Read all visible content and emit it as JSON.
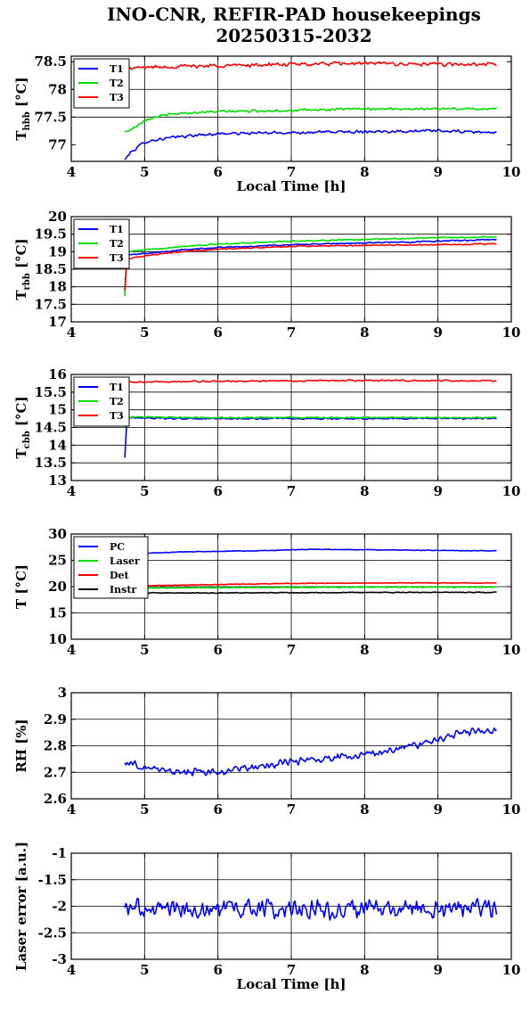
{
  "title": {
    "line1": "INO-CNR, REFIR-PAD housekeepings",
    "line2": "20250315-2032"
  },
  "chart_data": [
    {
      "type": "line",
      "ylabel_main": "T",
      "ylabel_sub": "hbb",
      "ylabel_unit": " [°C]",
      "xlabel": "Local Time [h]",
      "xlim": [
        4,
        10
      ],
      "ylim": [
        76.7,
        78.6
      ],
      "xticks": [
        4,
        5,
        6,
        7,
        8,
        9,
        10
      ],
      "yticks": [
        77,
        77.5,
        78,
        78.5
      ],
      "ytick_labels": [
        "77",
        "77.5",
        "78",
        "78.5"
      ],
      "grid": true,
      "legend_position": "top-left",
      "series": [
        {
          "name": "T1",
          "color": "#0000ff",
          "start": 4.73,
          "end": 9.8,
          "levels": [
            [
              4.73,
              76.73
            ],
            [
              4.8,
              76.85
            ],
            [
              4.9,
              76.95
            ],
            [
              5.0,
              77.05
            ],
            [
              5.2,
              77.1
            ],
            [
              5.5,
              77.15
            ],
            [
              6.0,
              77.2
            ],
            [
              7.0,
              77.22
            ],
            [
              8.0,
              77.24
            ],
            [
              9.0,
              77.25
            ],
            [
              9.8,
              77.22
            ]
          ],
          "noise": 0.03
        },
        {
          "name": "T2",
          "color": "#00dd00",
          "start": 4.73,
          "end": 9.8,
          "levels": [
            [
              4.73,
              77.23
            ],
            [
              4.85,
              77.3
            ],
            [
              5.0,
              77.45
            ],
            [
              5.2,
              77.52
            ],
            [
              5.5,
              77.57
            ],
            [
              6.0,
              77.6
            ],
            [
              7.0,
              77.62
            ],
            [
              8.0,
              77.65
            ],
            [
              9.0,
              77.65
            ],
            [
              9.8,
              77.65
            ]
          ],
          "noise": 0.025
        },
        {
          "name": "T3",
          "color": "#ff0000",
          "start": 4.73,
          "end": 9.8,
          "levels": [
            [
              4.73,
              78.37
            ],
            [
              5.0,
              78.4
            ],
            [
              6.0,
              78.43
            ],
            [
              7.0,
              78.45
            ],
            [
              8.0,
              78.47
            ],
            [
              9.0,
              78.45
            ],
            [
              9.8,
              78.45
            ]
          ],
          "noise": 0.04
        }
      ]
    },
    {
      "type": "line",
      "ylabel_main": "T",
      "ylabel_sub": "rbb",
      "ylabel_unit": " [°C]",
      "xlabel": "",
      "xlim": [
        4,
        10
      ],
      "ylim": [
        17,
        20
      ],
      "xticks": [
        4,
        5,
        6,
        7,
        8,
        9,
        10
      ],
      "yticks": [
        17,
        17.5,
        18,
        18.5,
        19,
        19.5,
        20
      ],
      "ytick_labels": [
        "17",
        "17.5",
        "18",
        "18.5",
        "19",
        "19.5",
        "20"
      ],
      "grid": true,
      "legend_position": "top-left",
      "series": [
        {
          "name": "T1",
          "color": "#0000ff",
          "start": 4.73,
          "end": 9.8,
          "levels": [
            [
              4.73,
              17.9
            ],
            [
              4.76,
              18.9
            ],
            [
              5.0,
              18.95
            ],
            [
              5.5,
              19.05
            ],
            [
              6.0,
              19.12
            ],
            [
              7.0,
              19.2
            ],
            [
              8.0,
              19.25
            ],
            [
              9.0,
              19.3
            ],
            [
              9.8,
              19.35
            ]
          ],
          "noise": 0.02
        },
        {
          "name": "T2",
          "color": "#00dd00",
          "start": 4.73,
          "end": 9.8,
          "levels": [
            [
              4.73,
              17.75
            ],
            [
              4.76,
              19.0
            ],
            [
              5.0,
              19.05
            ],
            [
              5.5,
              19.15
            ],
            [
              6.0,
              19.22
            ],
            [
              7.0,
              19.3
            ],
            [
              8.0,
              19.35
            ],
            [
              9.0,
              19.4
            ],
            [
              9.8,
              19.42
            ]
          ],
          "noise": 0.02
        },
        {
          "name": "T3",
          "color": "#ff0000",
          "start": 4.73,
          "end": 9.8,
          "levels": [
            [
              4.73,
              17.9
            ],
            [
              4.76,
              18.8
            ],
            [
              5.0,
              18.88
            ],
            [
              5.5,
              19.0
            ],
            [
              6.0,
              19.07
            ],
            [
              7.0,
              19.15
            ],
            [
              8.0,
              19.18
            ],
            [
              9.0,
              19.2
            ],
            [
              9.8,
              19.22
            ]
          ],
          "noise": 0.02
        }
      ]
    },
    {
      "type": "line",
      "ylabel_main": "T",
      "ylabel_sub": "cbb",
      "ylabel_unit": " [°C]",
      "xlabel": "",
      "xlim": [
        4,
        10
      ],
      "ylim": [
        13,
        16
      ],
      "xticks": [
        4,
        5,
        6,
        7,
        8,
        9,
        10
      ],
      "yticks": [
        13,
        13.5,
        14,
        14.5,
        15,
        15.5,
        16
      ],
      "ytick_labels": [
        "13",
        "13.5",
        "14",
        "14.5",
        "15",
        "15.5",
        "16"
      ],
      "grid": true,
      "legend_position": "top-left",
      "series": [
        {
          "name": "T1",
          "color": "#0000ff",
          "start": 4.73,
          "end": 9.8,
          "levels": [
            [
              4.73,
              13.65
            ],
            [
              4.76,
              14.78
            ],
            [
              5.5,
              14.75
            ],
            [
              7.0,
              14.75
            ],
            [
              9.8,
              14.76
            ]
          ],
          "noise": 0.025
        },
        {
          "name": "T2",
          "color": "#00dd00",
          "start": 4.73,
          "end": 9.8,
          "levels": [
            [
              4.73,
              14.5
            ],
            [
              4.76,
              14.8
            ],
            [
              5.5,
              14.78
            ],
            [
              7.0,
              14.78
            ],
            [
              9.8,
              14.78
            ]
          ],
          "noise": 0.02
        },
        {
          "name": "T3",
          "color": "#ff0000",
          "start": 4.73,
          "end": 9.8,
          "levels": [
            [
              4.73,
              15.78
            ],
            [
              5.5,
              15.8
            ],
            [
              7.0,
              15.82
            ],
            [
              8.0,
              15.83
            ],
            [
              9.8,
              15.82
            ]
          ],
          "noise": 0.025
        }
      ]
    },
    {
      "type": "line",
      "ylabel_main": "T",
      "ylabel_sub": "",
      "ylabel_unit": " [°C]",
      "xlabel": "",
      "xlim": [
        4,
        10
      ],
      "ylim": [
        10,
        30
      ],
      "xticks": [
        4,
        5,
        6,
        7,
        8,
        9,
        10
      ],
      "yticks": [
        10,
        15,
        20,
        25,
        30
      ],
      "ytick_labels": [
        "10",
        "15",
        "20",
        "25",
        "30"
      ],
      "grid": true,
      "legend_position": "top-left",
      "series": [
        {
          "name": "PC",
          "color": "#0000ff",
          "start": 4.73,
          "end": 9.8,
          "levels": [
            [
              4.73,
              26.2
            ],
            [
              5.5,
              26.6
            ],
            [
              6.5,
              26.8
            ],
            [
              7.3,
              27.1
            ],
            [
              8.0,
              27.0
            ],
            [
              9.0,
              26.9
            ],
            [
              9.8,
              26.8
            ]
          ],
          "noise": 0.07
        },
        {
          "name": "Laser",
          "color": "#00dd00",
          "start": 4.73,
          "end": 9.8,
          "levels": [
            [
              4.73,
              19.7
            ],
            [
              6.0,
              19.8
            ],
            [
              8.0,
              19.9
            ],
            [
              9.8,
              19.9
            ]
          ],
          "noise": 0.07
        },
        {
          "name": "Det",
          "color": "#ff0000",
          "start": 4.73,
          "end": 9.8,
          "levels": [
            [
              4.73,
              20.1
            ],
            [
              6.0,
              20.4
            ],
            [
              7.0,
              20.6
            ],
            [
              8.0,
              20.7
            ],
            [
              9.8,
              20.7
            ]
          ],
          "noise": 0.07
        },
        {
          "name": "Instr",
          "color": "#000000",
          "start": 4.73,
          "end": 9.8,
          "levels": [
            [
              4.73,
              18.8
            ],
            [
              6.0,
              18.8
            ],
            [
              8.0,
              18.9
            ],
            [
              9.8,
              18.9
            ]
          ],
          "noise": 0.08
        }
      ]
    },
    {
      "type": "line",
      "ylabel_main": "RH [%]",
      "ylabel_sub": "",
      "ylabel_unit": "",
      "xlabel": "",
      "xlim": [
        4,
        10
      ],
      "ylim": [
        2.6,
        3
      ],
      "xticks": [
        4,
        5,
        6,
        7,
        8,
        9,
        10
      ],
      "yticks": [
        2.6,
        2.7,
        2.8,
        2.9,
        3
      ],
      "ytick_labels": [
        "2.6",
        "2.7",
        "2.8",
        "2.9",
        "3"
      ],
      "grid": true,
      "legend_position": "none",
      "series": [
        {
          "name": "",
          "color": "#0000ff",
          "start": 4.73,
          "end": 9.8,
          "levels": [
            [
              4.73,
              2.74
            ],
            [
              5.0,
              2.72
            ],
            [
              5.5,
              2.7
            ],
            [
              6.0,
              2.7
            ],
            [
              6.5,
              2.72
            ],
            [
              7.0,
              2.74
            ],
            [
              7.5,
              2.75
            ],
            [
              8.0,
              2.77
            ],
            [
              8.5,
              2.79
            ],
            [
              9.0,
              2.82
            ],
            [
              9.3,
              2.85
            ],
            [
              9.8,
              2.86
            ]
          ],
          "noise": 0.016
        }
      ]
    },
    {
      "type": "line",
      "ylabel_main": "Laser error [a.u.]",
      "ylabel_sub": "",
      "ylabel_unit": "",
      "xlabel": "Local Time [h]",
      "xlim": [
        4,
        10
      ],
      "ylim": [
        -3,
        -1
      ],
      "xticks": [
        4,
        5,
        6,
        7,
        8,
        9,
        10
      ],
      "yticks": [
        -3,
        -2.5,
        -2,
        -1.5,
        -1
      ],
      "ytick_labels": [
        "-3",
        "-2.5",
        "-2",
        "-1.5",
        "-1"
      ],
      "grid": true,
      "legend_position": "none",
      "series": [
        {
          "name": "",
          "color": "#0000ff",
          "start": 4.73,
          "end": 9.8,
          "levels": [
            [
              4.73,
              -2.05
            ],
            [
              9.8,
              -2.05
            ]
          ],
          "noise": 0.22
        }
      ]
    }
  ]
}
